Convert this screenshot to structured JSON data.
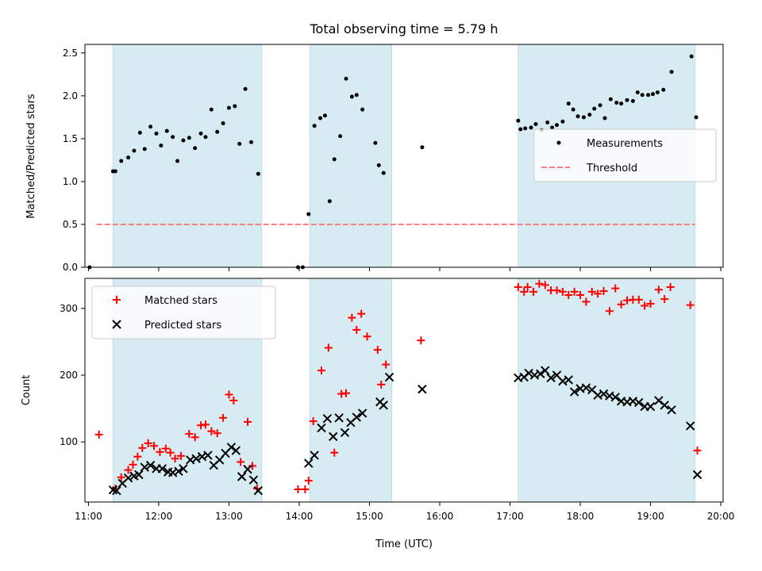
{
  "chart_data": {
    "title": "Total observing time = 5.79 h",
    "xlabel": "Time (UTC)",
    "xlim": [
      "10:57",
      "20:02"
    ],
    "xticks": [
      "11:00",
      "12:00",
      "13:00",
      "14:00",
      "15:00",
      "16:00",
      "17:00",
      "18:00",
      "19:00",
      "20:00"
    ],
    "shaded_intervals": [
      [
        "11:21",
        "13:28"
      ],
      [
        "14:09",
        "15:19"
      ],
      [
        "17:07",
        "19:38"
      ]
    ],
    "colors": {
      "shade": "#add8e6",
      "threshold": "#ff7f7f",
      "matched": "#ff0000",
      "predicted": "#000000",
      "measurement": "#000000"
    },
    "panels": [
      {
        "type": "scatter",
        "ylabel": "Matched/Predicted stars",
        "ylim": [
          0,
          2.6
        ],
        "yticks": [
          "0.0",
          "0.5",
          "1.0",
          "1.5",
          "2.0",
          "2.5"
        ],
        "legend_position": "center-right",
        "threshold": {
          "name": "Threshold",
          "y": 0.5,
          "x_range": [
            "11:07",
            "19:38"
          ]
        },
        "series": [
          {
            "name": "Measurements",
            "marker": "dot",
            "points": [
              [
                "11:01",
                0.0
              ],
              [
                "11:21",
                1.12
              ],
              [
                "11:23",
                1.12
              ],
              [
                "11:28",
                1.24
              ],
              [
                "11:34",
                1.28
              ],
              [
                "11:39",
                1.36
              ],
              [
                "11:44",
                1.57
              ],
              [
                "11:48",
                1.38
              ],
              [
                "11:53",
                1.64
              ],
              [
                "11:58",
                1.56
              ],
              [
                "12:02",
                1.42
              ],
              [
                "12:07",
                1.59
              ],
              [
                "12:12",
                1.52
              ],
              [
                "12:16",
                1.24
              ],
              [
                "12:21",
                1.48
              ],
              [
                "12:26",
                1.51
              ],
              [
                "12:31",
                1.39
              ],
              [
                "12:36",
                1.56
              ],
              [
                "12:40",
                1.52
              ],
              [
                "12:45",
                1.84
              ],
              [
                "12:50",
                1.58
              ],
              [
                "12:55",
                1.68
              ],
              [
                "13:00",
                1.86
              ],
              [
                "13:05",
                1.88
              ],
              [
                "13:09",
                1.44
              ],
              [
                "13:14",
                2.08
              ],
              [
                "13:19",
                1.46
              ],
              [
                "13:25",
                1.09
              ],
              [
                "13:59",
                0.0
              ],
              [
                "14:03",
                0.0
              ],
              [
                "14:08",
                0.62
              ],
              [
                "14:13",
                1.65
              ],
              [
                "14:18",
                1.74
              ],
              [
                "14:22",
                1.77
              ],
              [
                "14:26",
                0.77
              ],
              [
                "14:30",
                1.26
              ],
              [
                "14:35",
                1.53
              ],
              [
                "14:40",
                2.2
              ],
              [
                "14:45",
                1.99
              ],
              [
                "14:49",
                2.01
              ],
              [
                "14:54",
                1.84
              ],
              [
                "15:05",
                1.45
              ],
              [
                "15:08",
                1.19
              ],
              [
                "15:12",
                1.1
              ],
              [
                "15:45",
                1.4
              ],
              [
                "17:07",
                1.71
              ],
              [
                "17:09",
                1.61
              ],
              [
                "17:13",
                1.62
              ],
              [
                "17:18",
                1.63
              ],
              [
                "17:22",
                1.67
              ],
              [
                "17:27",
                1.6
              ],
              [
                "17:32",
                1.69
              ],
              [
                "17:36",
                1.63
              ],
              [
                "17:40",
                1.66
              ],
              [
                "17:45",
                1.7
              ],
              [
                "17:50",
                1.91
              ],
              [
                "17:54",
                1.84
              ],
              [
                "17:58",
                1.76
              ],
              [
                "18:03",
                1.75
              ],
              [
                "18:08",
                1.78
              ],
              [
                "18:12",
                1.85
              ],
              [
                "18:17",
                1.89
              ],
              [
                "18:21",
                1.74
              ],
              [
                "18:26",
                1.96
              ],
              [
                "18:31",
                1.92
              ],
              [
                "18:35",
                1.91
              ],
              [
                "18:40",
                1.95
              ],
              [
                "18:45",
                1.94
              ],
              [
                "18:49",
                2.04
              ],
              [
                "18:53",
                2.01
              ],
              [
                "18:58",
                2.01
              ],
              [
                "19:02",
                2.02
              ],
              [
                "19:06",
                2.04
              ],
              [
                "19:11",
                2.07
              ],
              [
                "19:18",
                2.28
              ],
              [
                "19:35",
                2.46
              ],
              [
                "19:39",
                1.75
              ]
            ]
          }
        ]
      },
      {
        "type": "scatter",
        "ylabel": "Count",
        "ylim": [
          10,
          345
        ],
        "yticks": [
          "100",
          "200",
          "300"
        ],
        "legend_position": "upper-left",
        "series": [
          {
            "name": "Matched stars",
            "marker": "plus",
            "points": [
              [
                "11:09",
                111
              ],
              [
                "11:23",
                30
              ],
              [
                "11:28",
                47
              ],
              [
                "11:34",
                58
              ],
              [
                "11:38",
                66
              ],
              [
                "11:42",
                78
              ],
              [
                "11:46",
                91
              ],
              [
                "11:51",
                98
              ],
              [
                "11:56",
                94
              ],
              [
                "12:01",
                85
              ],
              [
                "12:06",
                90
              ],
              [
                "12:10",
                84
              ],
              [
                "12:14",
                75
              ],
              [
                "12:19",
                79
              ],
              [
                "12:26",
                112
              ],
              [
                "12:31",
                107
              ],
              [
                "12:36",
                125
              ],
              [
                "12:40",
                126
              ],
              [
                "12:45",
                116
              ],
              [
                "12:50",
                113
              ],
              [
                "12:55",
                136
              ],
              [
                "13:00",
                171
              ],
              [
                "13:04",
                162
              ],
              [
                "13:10",
                70
              ],
              [
                "13:16",
                130
              ],
              [
                "13:20",
                64
              ],
              [
                "13:24",
                30
              ],
              [
                "13:59",
                29
              ],
              [
                "14:05",
                29
              ],
              [
                "14:08",
                42
              ],
              [
                "14:12",
                131
              ],
              [
                "14:19",
                207
              ],
              [
                "14:25",
                241
              ],
              [
                "14:30",
                84
              ],
              [
                "14:36",
                172
              ],
              [
                "14:40",
                173
              ],
              [
                "14:45",
                286
              ],
              [
                "14:49",
                268
              ],
              [
                "14:53",
                292
              ],
              [
                "14:58",
                258
              ],
              [
                "15:07",
                238
              ],
              [
                "15:10",
                186
              ],
              [
                "15:14",
                216
              ],
              [
                "15:44",
                252
              ],
              [
                "17:07",
                332
              ],
              [
                "17:12",
                325
              ],
              [
                "17:15",
                332
              ],
              [
                "17:20",
                325
              ],
              [
                "17:25",
                337
              ],
              [
                "17:30",
                335
              ],
              [
                "17:35",
                327
              ],
              [
                "17:40",
                327
              ],
              [
                "17:45",
                325
              ],
              [
                "17:50",
                320
              ],
              [
                "17:55",
                325
              ],
              [
                "18:00",
                320
              ],
              [
                "18:05",
                310
              ],
              [
                "18:10",
                325
              ],
              [
                "18:15",
                322
              ],
              [
                "18:20",
                326
              ],
              [
                "18:25",
                296
              ],
              [
                "18:30",
                330
              ],
              [
                "18:35",
                306
              ],
              [
                "18:40",
                312
              ],
              [
                "18:45",
                313
              ],
              [
                "18:50",
                313
              ],
              [
                "18:55",
                304
              ],
              [
                "19:00",
                307
              ],
              [
                "19:07",
                328
              ],
              [
                "19:12",
                314
              ],
              [
                "19:17",
                332
              ],
              [
                "19:34",
                305
              ],
              [
                "19:40",
                87
              ]
            ]
          },
          {
            "name": "Predicted stars",
            "marker": "x",
            "points": [
              [
                "11:21",
                28
              ],
              [
                "11:24",
                27
              ],
              [
                "11:29",
                38
              ],
              [
                "11:34",
                46
              ],
              [
                "11:39",
                49
              ],
              [
                "11:43",
                51
              ],
              [
                "11:48",
                62
              ],
              [
                "11:53",
                65
              ],
              [
                "11:58",
                60
              ],
              [
                "12:03",
                60
              ],
              [
                "12:08",
                55
              ],
              [
                "12:12",
                54
              ],
              [
                "12:17",
                56
              ],
              [
                "12:21",
                60
              ],
              [
                "12:27",
                73
              ],
              [
                "12:32",
                75
              ],
              [
                "12:37",
                78
              ],
              [
                "12:42",
                80
              ],
              [
                "12:47",
                65
              ],
              [
                "12:52",
                73
              ],
              [
                "12:57",
                83
              ],
              [
                "13:02",
                92
              ],
              [
                "13:06",
                87
              ],
              [
                "13:11",
                48
              ],
              [
                "13:16",
                59
              ],
              [
                "13:21",
                43
              ],
              [
                "13:25",
                27
              ],
              [
                "14:08",
                68
              ],
              [
                "14:13",
                80
              ],
              [
                "14:19",
                121
              ],
              [
                "14:24",
                135
              ],
              [
                "14:29",
                108
              ],
              [
                "14:34",
                136
              ],
              [
                "14:39",
                114
              ],
              [
                "14:44",
                129
              ],
              [
                "14:49",
                137
              ],
              [
                "14:54",
                143
              ],
              [
                "15:09",
                160
              ],
              [
                "15:12",
                155
              ],
              [
                "15:17",
                197
              ],
              [
                "15:45",
                179
              ],
              [
                "17:07",
                196
              ],
              [
                "17:12",
                197
              ],
              [
                "17:16",
                203
              ],
              [
                "17:21",
                200
              ],
              [
                "17:26",
                202
              ],
              [
                "17:30",
                207
              ],
              [
                "17:35",
                196
              ],
              [
                "17:40",
                200
              ],
              [
                "17:45",
                191
              ],
              [
                "17:50",
                193
              ],
              [
                "17:55",
                175
              ],
              [
                "18:00",
                180
              ],
              [
                "18:05",
                181
              ],
              [
                "18:10",
                178
              ],
              [
                "18:15",
                170
              ],
              [
                "18:20",
                172
              ],
              [
                "18:25",
                169
              ],
              [
                "18:30",
                167
              ],
              [
                "18:35",
                161
              ],
              [
                "18:40",
                160
              ],
              [
                "18:45",
                161
              ],
              [
                "18:50",
                159
              ],
              [
                "18:55",
                153
              ],
              [
                "19:00",
                153
              ],
              [
                "19:07",
                162
              ],
              [
                "19:12",
                155
              ],
              [
                "19:18",
                148
              ],
              [
                "19:34",
                124
              ],
              [
                "19:40",
                51
              ]
            ]
          }
        ]
      }
    ]
  }
}
